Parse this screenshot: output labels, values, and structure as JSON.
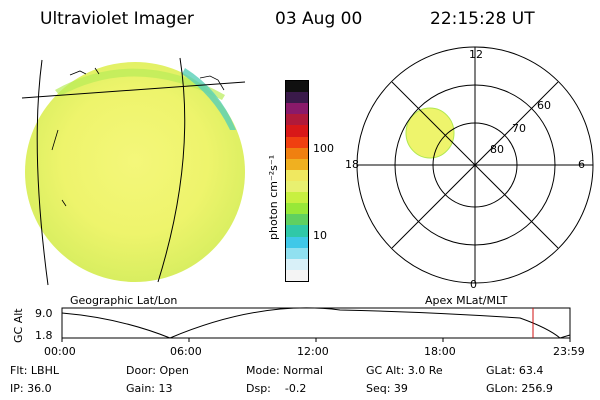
{
  "header": {
    "instrument": "Ultraviolet Imager",
    "date": "03 Aug 00",
    "time": "22:15:28 UT"
  },
  "colorbar": {
    "unit_label": "photon cm⁻²s⁻¹",
    "tick_labels": [
      "100",
      "10"
    ],
    "colors": [
      "#101010",
      "#3a1a4a",
      "#8a1a6a",
      "#b01a3a",
      "#d81818",
      "#f04010",
      "#f08010",
      "#f0b020",
      "#f0e860",
      "#e8f070",
      "#c8f040",
      "#98e838",
      "#60d060",
      "#30c8a8",
      "#40c8e8",
      "#90e0f0",
      "#d8f0f8",
      "#f4f4f4"
    ]
  },
  "polar_plot": {
    "mlt_labels": {
      "top": "12",
      "left": "18",
      "right": "6",
      "bottom": "0"
    },
    "mlat_labels": [
      "60",
      "70",
      "80"
    ]
  },
  "projection_labels": {
    "left": "Geographic Lat/Lon",
    "right": "Apex MLat/MLT"
  },
  "alt_plot": {
    "axis_label": "GC Alt",
    "y_ticks": [
      "9.0",
      "1.8"
    ],
    "x_ticks": [
      "00:00",
      "06:00",
      "12:00",
      "18:00",
      "23:59"
    ]
  },
  "info": {
    "flt": "Flt: LBHL",
    "door": "Door: Open",
    "mode": "Mode: Normal",
    "gc_alt": "GC Alt: 3.0 Re",
    "glat": "GLat: 63.4",
    "ip": "IP: 36.0",
    "gain": "Gain: 13",
    "dsp": "Dsp:    -0.2",
    "seq": "Seq: 39",
    "glon": "GLon: 256.9"
  }
}
